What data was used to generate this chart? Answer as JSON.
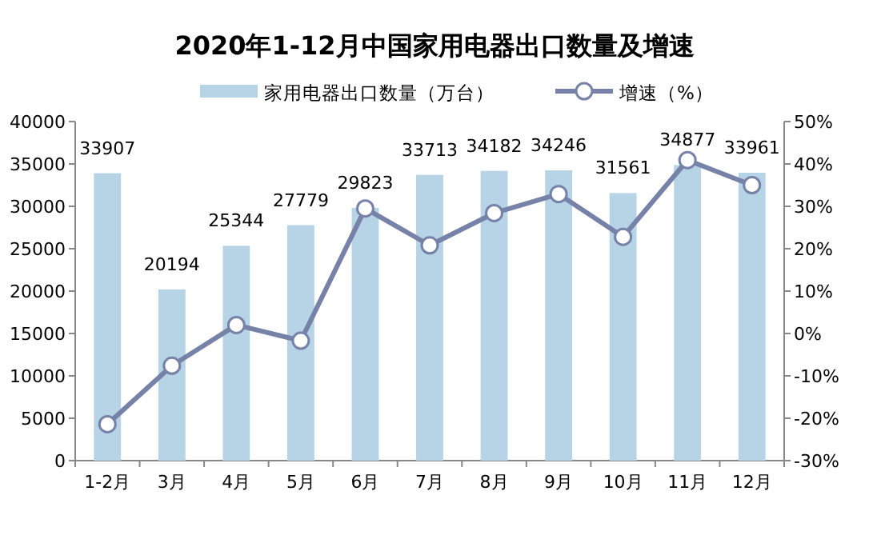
{
  "chart_data": {
    "type": "bar",
    "title": "2020年1-12月中国家用电器出口数量及增速",
    "categories": [
      "1-2月",
      "3月",
      "4月",
      "5月",
      "6月",
      "7月",
      "8月",
      "9月",
      "10月",
      "11月",
      "12月"
    ],
    "series": [
      {
        "name": "家用电器出口数量（万台）",
        "color": "#b7d3e6",
        "values": [
          33907,
          20194,
          25344,
          27779,
          29823,
          33713,
          34182,
          34246,
          31561,
          34877,
          33961
        ],
        "value_labels": [
          "33907",
          "20194",
          "25344",
          "27779",
          "29823",
          "33713",
          "34182",
          "34246",
          "31561",
          "34877",
          "33961"
        ]
      },
      {
        "name": "增速（%）",
        "type": "line",
        "axis": "y2",
        "color": "#7682a8",
        "marker": "circle",
        "values": [
          -21.4,
          -7.6,
          2.0,
          -1.7,
          29.5,
          20.8,
          28.4,
          32.9,
          22.8,
          40.9,
          35.0
        ]
      }
    ],
    "ylim": [
      0,
      40000
    ],
    "yticks": [
      0,
      5000,
      10000,
      15000,
      20000,
      25000,
      30000,
      35000,
      40000
    ],
    "y2lim": [
      -30,
      50
    ],
    "y2ticks": [
      {
        "value": -30,
        "label": "-30%"
      },
      {
        "value": -20,
        "label": "-20%"
      },
      {
        "value": -10,
        "label": "-10%"
      },
      {
        "value": 0,
        "label": "0%"
      },
      {
        "value": 10,
        "label": "10%"
      },
      {
        "value": 20,
        "label": "20%"
      },
      {
        "value": 30,
        "label": "30%"
      },
      {
        "value": 40,
        "label": "40%"
      },
      {
        "value": 50,
        "label": "50%"
      }
    ],
    "legend": "top",
    "grid": false
  }
}
